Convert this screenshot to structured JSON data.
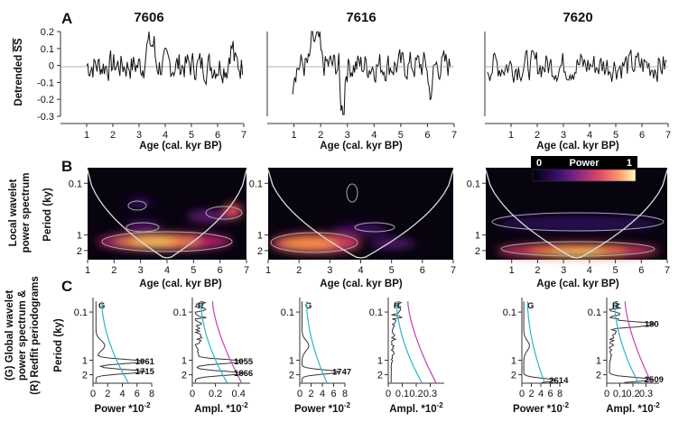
{
  "panels": {
    "A": "A",
    "B": "B",
    "C": "C"
  },
  "sites": [
    "7606",
    "7616",
    "7620"
  ],
  "labels": {
    "age_axis": "Age (cal. kyr BP)",
    "detrended_ylabel_line1": "Detrended",
    "detrended_ylabel_over": "SS",
    "wavelet_ylabel_line1": "Local wavelet",
    "wavelet_ylabel_line2": "power spectrum",
    "period_axis": "Period (ky)",
    "global_ylabel_line1": "(G) Global wavelet",
    "global_ylabel_line2": "power spectrum &",
    "global_ylabel_line3": "(R) Redfit periodograms",
    "power_axis_prefix": "Power *10",
    "ampl_axis_prefix": "Ampl. *10",
    "exp_suffix": "-2",
    "colorbar_title": "Power",
    "colorbar_min": "0",
    "colorbar_max": "1",
    "G": "G",
    "R": "R"
  },
  "chart_data": [
    {
      "type": "line",
      "panel": "A",
      "sites": [
        {
          "site": "7606",
          "xlim": [
            0,
            7
          ],
          "x_ticks": [
            1,
            2,
            3,
            4,
            5,
            6,
            7
          ],
          "series_x_range": [
            1.0,
            6.95
          ]
        },
        {
          "site": "7616",
          "xlim": [
            0,
            7
          ],
          "x_ticks": [
            1,
            2,
            3,
            4,
            5,
            6,
            7
          ],
          "series_x_range": [
            0.95,
            6.85
          ]
        },
        {
          "site": "7620",
          "xlim": [
            0,
            7
          ],
          "x_ticks": [
            1,
            2,
            3,
            4,
            5,
            6,
            7
          ],
          "series_x_range": [
            0.1,
            6.95
          ]
        }
      ],
      "ylim": [
        -0.3,
        0.2
      ],
      "y_ticks": [
        0.2,
        0.1,
        0,
        -0.1,
        -0.2,
        -0.3
      ],
      "y_tick_labels": [
        "0.2",
        "0.1",
        "0",
        "-0.1",
        "-0.2",
        "-0.3"
      ],
      "zero_line": true
    },
    {
      "type": "heatmap",
      "panel": "B",
      "x_ticks": [
        1,
        2,
        3,
        4,
        5,
        6,
        7
      ],
      "y_scale": "log",
      "y_ticks": [
        0.1,
        1,
        2
      ],
      "y_tick_labels": [
        "0.1",
        "1",
        "2"
      ],
      "ylim": [
        0.05,
        3
      ],
      "colorbar_range": [
        0,
        1
      ],
      "sites": [
        {
          "site": "7606",
          "xlim": [
            1,
            7
          ],
          "max_power_period_ky": 1.8,
          "max_power_age": [
            2.0,
            4.5
          ]
        },
        {
          "site": "7616",
          "xlim": [
            1,
            7
          ],
          "max_power_period_ky": 1.8,
          "max_power_age": [
            1.5,
            3.0
          ]
        },
        {
          "site": "7620",
          "xlim": [
            0,
            7
          ],
          "max_power_period_ky": 2.3,
          "max_power_age": [
            2.0,
            5.5
          ]
        }
      ]
    },
    {
      "type": "line",
      "panel": "C",
      "y_scale": "log",
      "y_ticks": [
        0.1,
        1,
        2
      ],
      "y_tick_labels": [
        "0.1",
        "1",
        "2"
      ],
      "plots": [
        {
          "site": "7606",
          "kind": "G",
          "xlim": [
            0,
            8
          ],
          "x_ticks": [
            0,
            2,
            4,
            6,
            8
          ],
          "peaks": [
            {
              "label": "1061",
              "period": 1.06
            },
            {
              "label": "1715",
              "period": 1.72
            }
          ]
        },
        {
          "site": "7606",
          "kind": "R",
          "xlim": [
            0,
            0.5
          ],
          "x_ticks": [
            0,
            0.2,
            0.4
          ],
          "x_tick_labels": [
            "0",
            "0.2",
            "0.4"
          ],
          "peaks": [
            {
              "label": "1055",
              "period": 1.06
            },
            {
              "label": "1866",
              "period": 1.87
            }
          ]
        },
        {
          "site": "7616",
          "kind": "G",
          "xlim": [
            0,
            8
          ],
          "x_ticks": [
            0,
            2,
            4,
            6,
            8
          ],
          "peaks": [
            {
              "label": "1747",
              "period": 1.75
            }
          ]
        },
        {
          "site": "7616",
          "kind": "R",
          "xlim": [
            0,
            0.4
          ],
          "x_ticks": [
            0,
            0.1,
            0.2,
            0.3
          ],
          "x_tick_labels": [
            "0",
            "0.1",
            "0.2",
            "0.3"
          ],
          "peaks": []
        },
        {
          "site": "7620",
          "kind": "G",
          "xlim": [
            0,
            8
          ],
          "x_ticks": [
            0,
            2,
            4,
            6,
            8
          ],
          "peaks": [
            {
              "label": "2614",
              "period": 2.61
            }
          ]
        },
        {
          "site": "7620",
          "kind": "R",
          "xlim": [
            0,
            0.4
          ],
          "x_ticks": [
            0,
            0.1,
            0.2,
            0.3
          ],
          "x_tick_labels": [
            "0",
            "0.1",
            "0.2",
            "0.3"
          ],
          "peaks": [
            {
              "label": "180",
              "period": 0.18
            },
            {
              "label": "2509",
              "period": 2.51
            }
          ]
        }
      ]
    }
  ]
}
